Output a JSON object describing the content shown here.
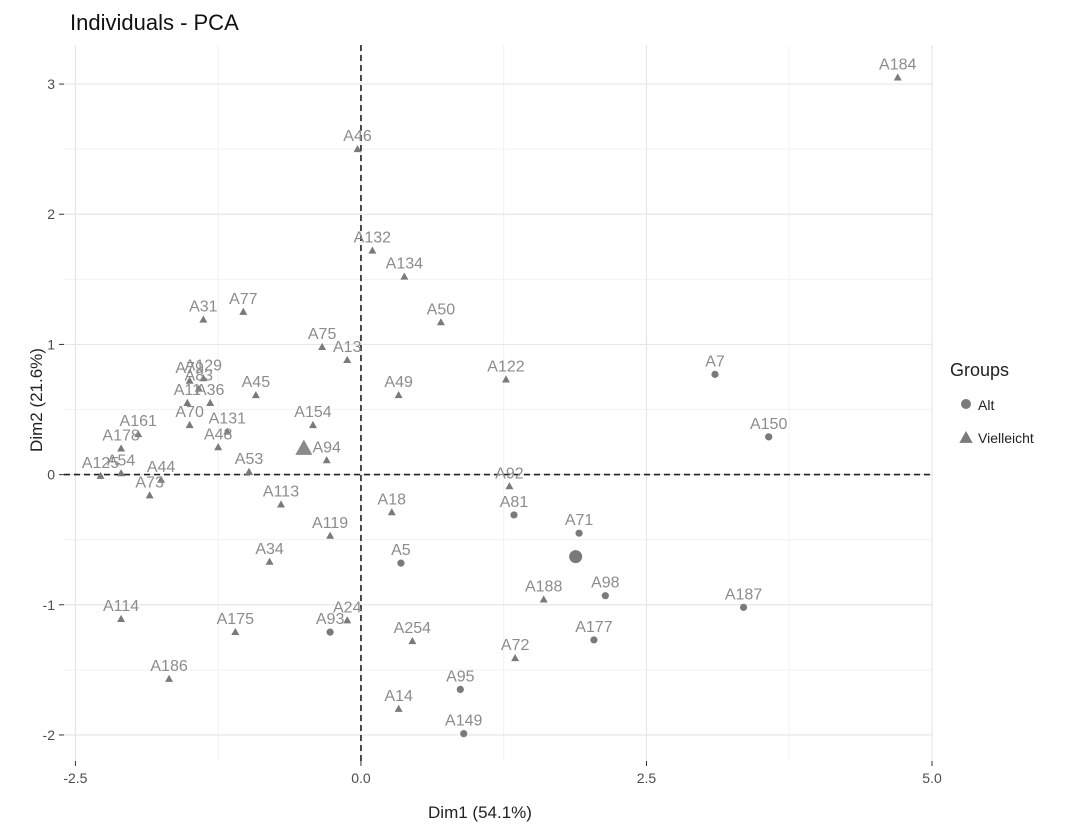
{
  "chart_data": {
    "type": "scatter",
    "title": "Individuals - PCA",
    "xlabel": "Dim1 (54.1%)",
    "ylabel": "Dim2 (21.6%)",
    "xlim": [
      -2.6,
      5.0
    ],
    "ylim": [
      -2.2,
      3.3
    ],
    "x_ticks": [
      -2.5,
      0.0,
      2.5,
      5.0
    ],
    "x_tick_labels": [
      "-2.5",
      "0.0",
      "2.5",
      "5.0"
    ],
    "y_ticks": [
      -2,
      -1,
      0,
      1,
      2,
      3
    ],
    "y_tick_labels": [
      "-2",
      "-1",
      "0",
      "1",
      "2",
      "3"
    ],
    "grid": true,
    "reference_lines": {
      "x": 0,
      "y": 0,
      "style": "dashed"
    },
    "legend": {
      "title": "Groups",
      "placement": "right",
      "entries": [
        {
          "label": "Alt",
          "shape": "circle"
        },
        {
          "label": "Vielleicht",
          "shape": "triangle"
        }
      ]
    },
    "centroids": [
      {
        "group": "Alt",
        "x": 1.88,
        "y": -0.63
      },
      {
        "group": "Vielleicht",
        "x": -0.5,
        "y": 0.2
      }
    ],
    "series": [
      {
        "name": "Alt",
        "shape": "circle",
        "points": [
          {
            "label": "A7",
            "x": 3.1,
            "y": 0.77
          },
          {
            "label": "A150",
            "x": 3.57,
            "y": 0.29
          },
          {
            "label": "A81",
            "x": 1.34,
            "y": -0.31
          },
          {
            "label": "A71",
            "x": 1.91,
            "y": -0.45
          },
          {
            "label": "A5",
            "x": 0.35,
            "y": -0.68
          },
          {
            "label": "A98",
            "x": 2.14,
            "y": -0.93
          },
          {
            "label": "A187",
            "x": 3.35,
            "y": -1.02
          },
          {
            "label": "A93",
            "x": -0.27,
            "y": -1.21
          },
          {
            "label": "A177",
            "x": 2.04,
            "y": -1.27
          },
          {
            "label": "A95",
            "x": 0.87,
            "y": -1.65
          },
          {
            "label": "A149",
            "x": 0.9,
            "y": -1.99
          }
        ]
      },
      {
        "name": "Vielleicht",
        "shape": "triangle",
        "points": [
          {
            "label": "A184",
            "x": 4.7,
            "y": 3.05
          },
          {
            "label": "A46",
            "x": -0.03,
            "y": 2.5
          },
          {
            "label": "A132",
            "x": 0.1,
            "y": 1.72
          },
          {
            "label": "A134",
            "x": 0.38,
            "y": 1.52
          },
          {
            "label": "A31",
            "x": -1.38,
            "y": 1.19
          },
          {
            "label": "A77",
            "x": -1.03,
            "y": 1.25
          },
          {
            "label": "A50",
            "x": 0.7,
            "y": 1.17
          },
          {
            "label": "A75",
            "x": -0.34,
            "y": 0.98
          },
          {
            "label": "A13",
            "x": -0.12,
            "y": 0.88
          },
          {
            "label": "A122",
            "x": 1.27,
            "y": 0.73
          },
          {
            "label": "A79",
            "x": -1.5,
            "y": 0.72
          },
          {
            "label": "A129",
            "x": -1.38,
            "y": 0.74
          },
          {
            "label": "A83",
            "x": -1.42,
            "y": 0.66
          },
          {
            "label": "A45",
            "x": -0.92,
            "y": 0.61
          },
          {
            "label": "A49",
            "x": 0.33,
            "y": 0.61
          },
          {
            "label": "A11",
            "x": -1.52,
            "y": 0.55
          },
          {
            "label": "A36",
            "x": -1.32,
            "y": 0.55
          },
          {
            "label": "A70",
            "x": -1.5,
            "y": 0.38
          },
          {
            "label": "A131",
            "x": -1.17,
            "y": 0.33
          },
          {
            "label": "A154",
            "x": -0.42,
            "y": 0.38
          },
          {
            "label": "A161",
            "x": -1.95,
            "y": 0.31
          },
          {
            "label": "A48",
            "x": -1.25,
            "y": 0.21
          },
          {
            "label": "A94",
            "x": -0.3,
            "y": 0.11
          },
          {
            "label": "A178",
            "x": -2.1,
            "y": 0.2
          },
          {
            "label": "A53",
            "x": -0.98,
            "y": 0.02
          },
          {
            "label": "A125",
            "x": -2.28,
            "y": -0.01
          },
          {
            "label": "A54",
            "x": -2.1,
            "y": 0.01
          },
          {
            "label": "A44",
            "x": -1.75,
            "y": -0.04
          },
          {
            "label": "A73",
            "x": -1.85,
            "y": -0.16
          },
          {
            "label": "A92",
            "x": 1.3,
            "y": -0.09
          },
          {
            "label": "A113",
            "x": -0.7,
            "y": -0.23
          },
          {
            "label": "A18",
            "x": 0.27,
            "y": -0.29
          },
          {
            "label": "A119",
            "x": -0.27,
            "y": -0.47
          },
          {
            "label": "A34",
            "x": -0.8,
            "y": -0.67
          },
          {
            "label": "A188",
            "x": 1.6,
            "y": -0.96
          },
          {
            "label": "A114",
            "x": -2.1,
            "y": -1.11
          },
          {
            "label": "A24",
            "x": -0.12,
            "y": -1.12
          },
          {
            "label": "A175",
            "x": -1.1,
            "y": -1.21
          },
          {
            "label": "A254",
            "x": 0.45,
            "y": -1.28
          },
          {
            "label": "A72",
            "x": 1.35,
            "y": -1.41
          },
          {
            "label": "A186",
            "x": -1.68,
            "y": -1.57
          },
          {
            "label": "A14",
            "x": 0.33,
            "y": -1.8
          }
        ]
      }
    ]
  }
}
